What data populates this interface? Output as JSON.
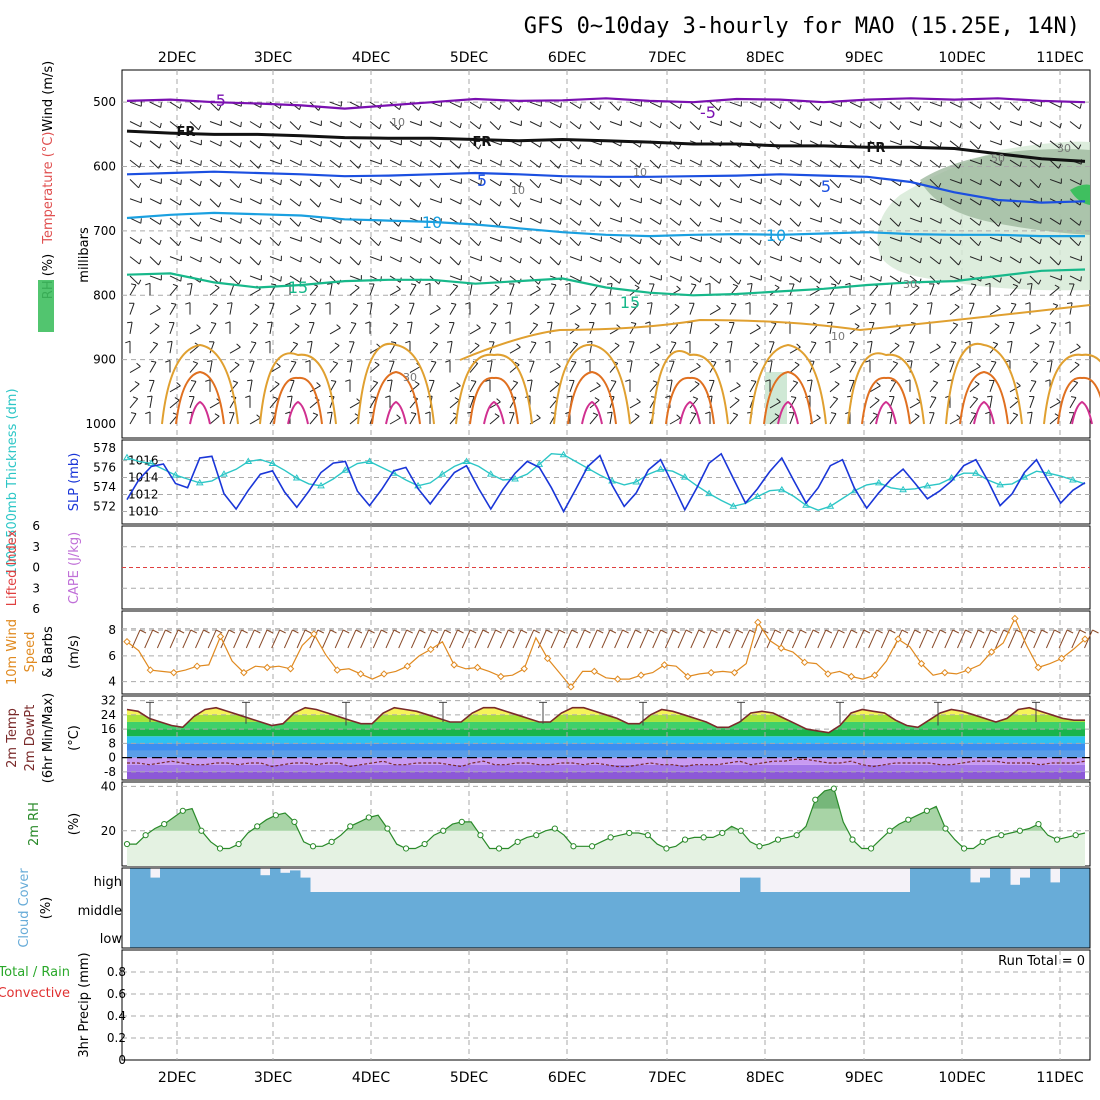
{
  "chart_data": [
    {
      "type": "line",
      "title": "GFS 0~10day 3-hourly for MAO (15.25E, 14N)",
      "xaxis_ticks": [
        "2DEC",
        "3DEC",
        "4DEC",
        "5DEC",
        "6DEC",
        "7DEC",
        "8DEC",
        "9DEC",
        "10DEC",
        "11DEC"
      ],
      "panel": "upper-air",
      "ylabel": "millibars",
      "ylabel_parts": {
        "rh": "RH (%)",
        "temp": "Temperature (°C)",
        "wind": "Wind (m/s)"
      },
      "yticks": [
        500,
        600,
        700,
        800,
        900,
        1000
      ],
      "ylim": [
        450,
        1000
      ],
      "isotherms": [
        {
          "label": "-5",
          "level_mb": [
            498,
            496,
            500,
            502,
            505,
            510,
            505,
            500,
            495,
            498,
            497,
            494,
            498,
            500,
            495,
            496,
            500,
            496,
            494,
            496,
            494,
            498,
            500
          ]
        },
        {
          "label": "FR",
          "level_mb": [
            545,
            548,
            550,
            550,
            552,
            555,
            556,
            556,
            558,
            560,
            558,
            560,
            562,
            565,
            565,
            568,
            568,
            570,
            570,
            572,
            580,
            588,
            592
          ]
        },
        {
          "label": "5",
          "level_mb": [
            612,
            610,
            608,
            610,
            612,
            615,
            614,
            612,
            610,
            612,
            615,
            616,
            616,
            615,
            614,
            612,
            614,
            616,
            624,
            640,
            652,
            656,
            654
          ]
        },
        {
          "label": "10",
          "level_mb": [
            680,
            675,
            672,
            674,
            676,
            682,
            684,
            686,
            690,
            696,
            702,
            706,
            708,
            706,
            705,
            706,
            704,
            702,
            705,
            706,
            706,
            708,
            708
          ]
        },
        {
          "label": "15",
          "level_mb": [
            768,
            766,
            780,
            788,
            784,
            778,
            776,
            776,
            782,
            778,
            774,
            788,
            796,
            800,
            798,
            794,
            790,
            784,
            780,
            778,
            770,
            762,
            760
          ]
        }
      ],
      "isotherm_labels": [
        "-5",
        "-5",
        "FR",
        "FR",
        "FR",
        "5",
        "5",
        "10",
        "10",
        "15",
        "15"
      ],
      "rh_contour_labels": [
        "10",
        "10",
        "10",
        "30",
        "50",
        "30",
        "30",
        "10"
      ]
    },
    {
      "type": "line",
      "panel": "slp-thickness",
      "ylabel_left": "1000-500mb Thickness (dm)",
      "ylabel_right": "SLP (mb)",
      "left_ticks": [
        572,
        574,
        576,
        578
      ],
      "right_ticks": [
        1010,
        1012,
        1014,
        1016
      ],
      "series": [
        {
          "name": "SLP",
          "values": [
            1011.4,
            1013.8,
            1015.3,
            1015.6,
            1013.3,
            1012.8,
            1016.3,
            1016.5,
            1012.1,
            1010.3,
            1012.5,
            1014.4,
            1014.8,
            1012.3,
            1010.5,
            1012.4,
            1014.6,
            1015.7,
            1015.9,
            1012.4,
            1010.7,
            1012.6,
            1014.8,
            1015.2,
            1012.7,
            1010.9,
            1012.8,
            1014.6,
            1015.4,
            1012.7,
            1010.3,
            1012.6,
            1014.5,
            1015.9,
            1015.2,
            1012.8,
            1010.0,
            1012.6,
            1015.3,
            1016.6,
            1013.1,
            1010.6,
            1012.2,
            1014.9,
            1016.1,
            1013.2,
            1010.2,
            1012.8,
            1015.7,
            1016.8,
            1013.9,
            1011.0,
            1012.7,
            1014.7,
            1016.3,
            1013.6,
            1011.0,
            1012.8,
            1015.4,
            1016.1,
            1012.7,
            1010.4,
            1012.2,
            1013.8,
            1015.0,
            1013.3,
            1011.5,
            1012.4,
            1013.6,
            1015.4,
            1016.1,
            1013.6,
            1010.7,
            1012.1,
            1014.6,
            1016.1,
            1013.5,
            1011.0,
            1012.5,
            1013.4
          ]
        },
        {
          "name": "Thickness",
          "values": [
            577.0,
            576.6,
            576.4,
            575.8,
            575.2,
            574.8,
            574.4,
            574.6,
            575.3,
            575.8,
            576.6,
            576.8,
            576.4,
            575.7,
            574.9,
            574.3,
            574.1,
            574.8,
            575.7,
            576.4,
            576.6,
            576.0,
            575.4,
            574.7,
            574.1,
            574.4,
            575.3,
            576.1,
            576.6,
            576.1,
            575.3,
            574.7,
            574.8,
            575.3,
            576.3,
            577.4,
            577.3,
            576.6,
            575.9,
            575.2,
            574.6,
            574.2,
            574.5,
            575.3,
            575.8,
            575.6,
            575.0,
            574.1,
            573.3,
            572.6,
            572.0,
            572.3,
            573.0,
            573.6,
            573.7,
            573.0,
            572.1,
            571.6,
            572.0,
            572.8,
            573.6,
            574.2,
            574.4,
            573.9,
            573.7,
            573.8,
            574.1,
            574.3,
            574.9,
            575.4,
            575.4,
            574.7,
            574.2,
            574.3,
            575.0,
            575.6,
            575.4,
            575.1,
            574.7,
            574.3
          ]
        }
      ]
    },
    {
      "type": "line",
      "panel": "stability",
      "ylabel_left": "Lifted Index",
      "ylabel_right": "CAPE (J/kg)",
      "yticks": [
        -6,
        -3,
        0,
        3,
        6
      ],
      "series": [
        {
          "name": "Lifted Index",
          "values": []
        },
        {
          "name": "CAPE",
          "values": []
        }
      ]
    },
    {
      "type": "line",
      "panel": "wind10m",
      "ylabel": "10m Wind Speed (m/s) & Barbs",
      "ylabel_parts": {
        "a": "10m Wind",
        "b": "Speed",
        "c": "& Barbs",
        "unit": "(m/s)"
      },
      "yticks": [
        4,
        6,
        8
      ],
      "ylim": [
        3.2,
        9.4
      ],
      "series": [
        {
          "name": "10m Wind Speed",
          "values": [
            7.1,
            6.4,
            4.9,
            4.8,
            4.7,
            4.9,
            5.2,
            5.3,
            7.5,
            5.6,
            4.7,
            5.2,
            5.1,
            5.2,
            5.0,
            6.8,
            7.7,
            6.1,
            4.9,
            5.0,
            4.6,
            4.2,
            4.6,
            4.8,
            5.2,
            6.0,
            6.5,
            7.1,
            5.3,
            5.0,
            5.1,
            4.8,
            4.4,
            4.5,
            5.0,
            7.4,
            5.8,
            4.7,
            3.6,
            4.8,
            4.8,
            4.3,
            4.2,
            4.2,
            4.5,
            4.7,
            5.3,
            5.2,
            4.4,
            4.6,
            4.7,
            4.8,
            4.7,
            5.4,
            8.6,
            7.2,
            6.6,
            6.3,
            5.5,
            5.4,
            4.6,
            4.8,
            4.4,
            4.2,
            4.5,
            5.6,
            7.3,
            6.7,
            5.4,
            4.5,
            4.7,
            4.6,
            4.9,
            5.3,
            6.3,
            7.0,
            8.9,
            6.8,
            5.1,
            5.4,
            5.8,
            6.5,
            7.3
          ]
        }
      ]
    },
    {
      "type": "area",
      "panel": "temperature",
      "ylabel": "2m Temp 2m DewPt (6hr Min/Max) (°C)",
      "ylabel_parts": {
        "a": "2m Temp",
        "b": "2m DewPt",
        "c": "(6hr Min/Max)",
        "unit": "(°C)"
      },
      "yticks": [
        -8,
        0,
        8,
        16,
        24,
        32
      ],
      "ylim": [
        -12,
        34
      ],
      "series": [
        {
          "name": "2m Temp",
          "values": [
            27,
            26,
            22,
            20,
            18,
            17,
            23,
            27,
            28,
            26,
            24,
            22,
            20,
            18,
            19,
            25,
            28,
            27,
            25,
            23,
            21,
            19,
            19,
            25,
            28,
            27,
            26,
            24,
            22,
            20,
            20,
            25,
            28,
            28,
            26,
            24,
            22,
            20,
            20,
            25,
            28,
            28,
            26,
            24,
            22,
            19,
            19,
            24,
            27,
            26,
            24,
            22,
            20,
            17,
            17,
            20,
            25,
            26,
            25,
            22,
            19,
            16,
            15,
            14,
            18,
            25,
            27,
            26,
            25,
            21,
            18,
            17,
            21,
            25,
            27,
            26,
            24,
            22,
            20,
            22,
            27,
            28,
            26,
            24,
            22,
            21,
            21
          ]
        },
        {
          "name": "2m DewPt",
          "values": [
            -3,
            -3,
            -4,
            -3,
            -2,
            -3,
            -4,
            -4,
            -3,
            -3,
            -4,
            -3,
            -3,
            -5,
            -4,
            -3,
            -3,
            -4,
            -3,
            -3,
            -5,
            -4,
            -3,
            -2,
            -4,
            -4,
            -3,
            -3,
            -3,
            -4,
            -5,
            -3,
            -2,
            -4,
            -4,
            -3,
            -3,
            -4,
            -4,
            -3,
            -3,
            -4,
            -3,
            -4,
            -5,
            -5,
            -4,
            -3,
            -4,
            -4,
            -5,
            -4,
            -4,
            -4,
            -3,
            -2,
            -4,
            -3,
            -2,
            -2,
            -1,
            -1,
            -2,
            -3,
            -3,
            -2,
            -4,
            -5,
            -4,
            -3,
            -3,
            -3,
            -3,
            -4,
            -4,
            -3,
            -2,
            -2,
            -2,
            -3,
            -3,
            -3,
            -4,
            -3,
            -3,
            -3,
            -2
          ]
        }
      ]
    },
    {
      "type": "area",
      "panel": "rh2m",
      "ylabel": "2m RH (%)",
      "yticks": [
        20,
        40
      ],
      "ylim": [
        5,
        42
      ],
      "series": [
        {
          "name": "2m RH",
          "values": [
            14,
            14,
            18,
            21,
            23,
            26,
            29,
            30,
            20,
            15,
            12,
            12,
            14,
            19,
            22,
            25,
            27,
            28,
            24,
            15,
            13,
            13,
            15,
            18,
            22,
            24,
            26,
            27,
            21,
            14,
            12,
            12,
            14,
            18,
            20,
            23,
            24,
            24,
            18,
            12,
            12,
            12,
            15,
            17,
            18,
            20,
            21,
            18,
            13,
            13,
            13,
            15,
            17,
            18,
            19,
            19,
            18,
            14,
            12,
            13,
            16,
            17,
            17,
            17,
            19,
            22,
            20,
            15,
            13,
            14,
            16,
            17,
            18,
            22,
            34,
            38,
            39,
            24,
            16,
            12,
            12,
            16,
            20,
            23,
            25,
            27,
            29,
            31,
            21,
            16,
            12,
            12,
            15,
            17,
            18,
            19,
            20,
            21,
            23,
            18,
            16,
            17,
            18,
            19
          ]
        }
      ]
    },
    {
      "type": "bar",
      "panel": "cloud",
      "ylabel": "Cloud Cover (%)",
      "ylabel_parts": {
        "a": "Cloud Cover",
        "unit": "(%)"
      },
      "level_labels": [
        "high",
        "middle",
        "low"
      ],
      "series": [
        {
          "name": "high",
          "values": [
            100,
            100,
            60,
            100,
            100,
            100,
            100,
            100,
            100,
            100,
            100,
            100,
            100,
            70,
            100,
            80,
            90,
            60,
            0,
            0,
            0,
            0,
            0,
            0,
            0,
            0,
            0,
            0,
            0,
            0,
            0,
            0,
            0,
            0,
            0,
            0,
            0,
            0,
            0,
            0,
            0,
            0,
            0,
            0,
            0,
            0,
            0,
            0,
            0,
            0,
            0,
            0,
            0,
            0,
            0,
            0,
            0,
            0,
            0,
            0,
            0,
            60,
            60,
            0,
            0,
            0,
            0,
            0,
            0,
            0,
            0,
            0,
            0,
            0,
            0,
            0,
            0,
            0,
            100,
            100,
            100,
            100,
            100,
            100,
            40,
            60,
            100,
            100,
            30,
            60,
            100,
            100,
            40,
            100,
            100,
            100
          ]
        },
        {
          "name": "middle",
          "values": []
        },
        {
          "name": "low",
          "values": []
        }
      ]
    },
    {
      "type": "bar",
      "panel": "precip",
      "ylabel": "3hr Precip (mm)",
      "legend": [
        "Total / Rain",
        "Convective"
      ],
      "yticks": [
        0,
        0.2,
        0.4,
        0.6,
        0.8
      ],
      "ylim": [
        0,
        1
      ],
      "annotation": "Run Total = 0",
      "series": [
        {
          "name": "Total / Rain",
          "values": []
        },
        {
          "name": "Convective",
          "values": []
        }
      ]
    }
  ]
}
